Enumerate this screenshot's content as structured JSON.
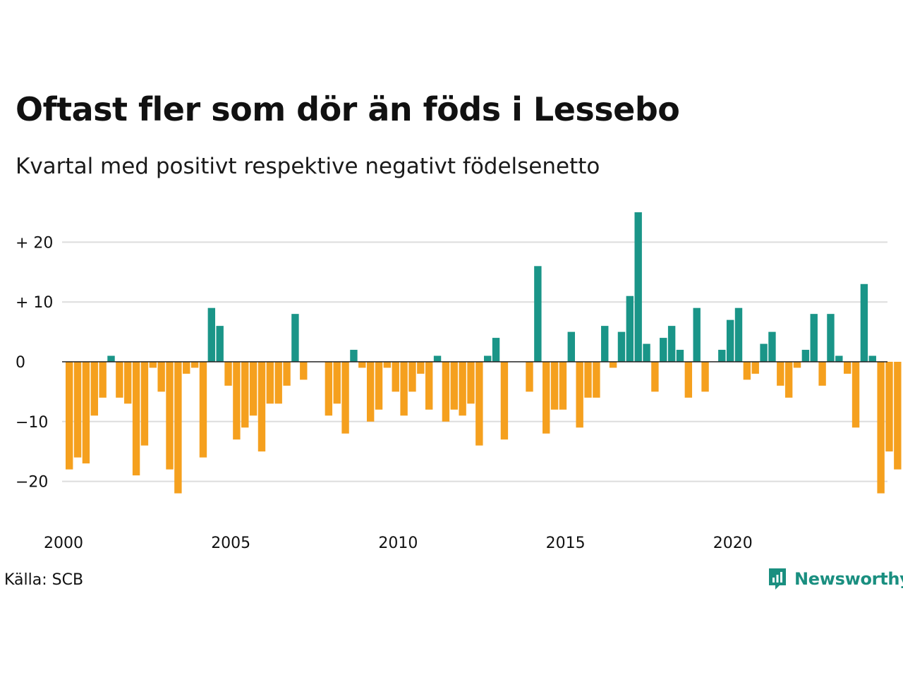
{
  "title": "Oftast fler som dör än föds i Lessebo",
  "subtitle": "Kvartal med positivt respektive negativt födelsenetto",
  "source": "Källa: SCB",
  "brand": "Newsworthy",
  "colors": {
    "positive": "#1a9588",
    "negative": "#f5a01e",
    "grid": "#dddddd",
    "zero_line": "#222222",
    "brand": "#1a8f80"
  },
  "chart_data": {
    "type": "bar",
    "x_unit": "quarter",
    "x_start": "2000 Q1",
    "x_tick_labels": [
      "2000",
      "2005",
      "2010",
      "2015",
      "2020"
    ],
    "y_tick_labels": [
      "+ 20",
      "+ 10",
      "0",
      "−10",
      "−20"
    ],
    "y_ticks": [
      20,
      10,
      0,
      -10,
      -20
    ],
    "ylim": [
      -26,
      25
    ],
    "grid": true,
    "values": [
      -18,
      -16,
      -17,
      -9,
      -6,
      1,
      -6,
      -7,
      -19,
      -14,
      -1,
      -5,
      -18,
      -22,
      -2,
      -1,
      -16,
      9,
      6,
      -4,
      -13,
      -11,
      -9,
      -15,
      -7,
      -7,
      -4,
      8,
      -3,
      0,
      0,
      -9,
      -7,
      -12,
      2,
      -1,
      -10,
      -8,
      -1,
      -5,
      -9,
      -5,
      -2,
      -8,
      1,
      -10,
      -8,
      -9,
      -7,
      -14,
      1,
      4,
      -13,
      0,
      0,
      -5,
      16,
      -12,
      -8,
      -8,
      5,
      -11,
      -6,
      -6,
      6,
      -1,
      5,
      11,
      25,
      3,
      -5,
      4,
      6,
      2,
      -6,
      9,
      -5,
      0,
      2,
      7,
      9,
      -3,
      -2,
      3,
      5,
      -4,
      -6,
      -1,
      2,
      8,
      -4,
      8,
      1,
      -2,
      -11,
      13,
      1,
      -22,
      -15,
      -18
    ]
  }
}
